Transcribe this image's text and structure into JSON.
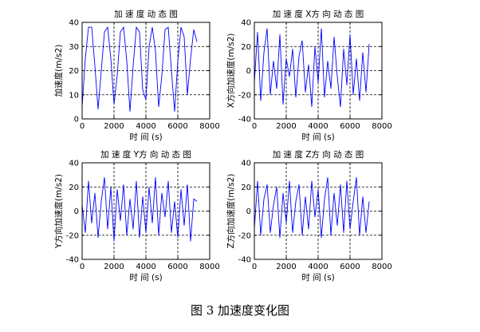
{
  "figure_caption": "图 3  加速度变化图",
  "chart_data": [
    {
      "type": "line",
      "title": "加 速 度 动 态 图",
      "xlabel": "时 间 (s)",
      "ylabel": "加速度(m/s2)",
      "xlim": [
        0,
        8000
      ],
      "ylim": [
        0,
        40
      ],
      "xticks": [
        0,
        2000,
        4000,
        6000,
        8000
      ],
      "yticks": [
        0,
        10,
        20,
        30,
        40
      ],
      "grid": true,
      "color": "#0000ff",
      "x": [
        0,
        200,
        400,
        600,
        800,
        1000,
        1200,
        1400,
        1600,
        1800,
        2000,
        2200,
        2400,
        2600,
        2800,
        3000,
        3200,
        3400,
        3600,
        3800,
        4000,
        4200,
        4400,
        4600,
        4800,
        5000,
        5200,
        5400,
        5600,
        5800,
        6000,
        6200,
        6400,
        6600,
        6800,
        7000,
        7200
      ],
      "values": [
        5,
        25,
        38,
        38,
        22,
        4,
        20,
        36,
        38,
        25,
        6,
        18,
        36,
        38,
        24,
        3,
        22,
        38,
        36,
        12,
        8,
        30,
        38,
        28,
        5,
        18,
        37,
        38,
        20,
        3,
        24,
        38,
        34,
        10,
        25,
        37,
        32
      ]
    },
    {
      "type": "line",
      "title": "加 速 度 X方 向 动 态 图",
      "xlabel": "时 间 (s)",
      "ylabel": "X方向加速度(m/s2)",
      "xlim": [
        0,
        8000
      ],
      "ylim": [
        -40,
        40
      ],
      "xticks": [
        0,
        2000,
        4000,
        6000,
        8000
      ],
      "yticks": [
        -40,
        -20,
        0,
        20,
        40
      ],
      "grid": true,
      "color": "#0000ff",
      "x": [
        0,
        200,
        400,
        600,
        800,
        1000,
        1200,
        1400,
        1600,
        1800,
        2000,
        2200,
        2400,
        2600,
        2800,
        3000,
        3200,
        3400,
        3600,
        3800,
        4000,
        4200,
        4400,
        4600,
        4800,
        5000,
        5200,
        5400,
        5600,
        5800,
        6000,
        6200,
        6400,
        6600,
        6800,
        7000,
        7200
      ],
      "values": [
        -10,
        32,
        -25,
        15,
        35,
        -20,
        8,
        -15,
        30,
        -28,
        10,
        -5,
        18,
        -22,
        12,
        25,
        -18,
        5,
        -30,
        20,
        -10,
        35,
        -22,
        8,
        -15,
        28,
        -5,
        -30,
        18,
        -12,
        30,
        -20,
        10,
        -25,
        15,
        -18,
        22
      ]
    },
    {
      "type": "line",
      "title": "加 速 度 Y方 向 动 态 图",
      "xlabel": "时 间 (s)",
      "ylabel": "Y方向加速度(m/s2)",
      "xlim": [
        0,
        8000
      ],
      "ylim": [
        -40,
        40
      ],
      "xticks": [
        0,
        2000,
        4000,
        6000,
        8000
      ],
      "yticks": [
        -40,
        -20,
        0,
        20,
        40
      ],
      "grid": true,
      "color": "#0000ff",
      "x": [
        0,
        200,
        400,
        600,
        800,
        1000,
        1200,
        1400,
        1600,
        1800,
        2000,
        2200,
        2400,
        2600,
        2800,
        3000,
        3200,
        3400,
        3600,
        3800,
        4000,
        4200,
        4400,
        4600,
        4800,
        5000,
        5200,
        5400,
        5600,
        5800,
        6000,
        6200,
        6400,
        6600,
        6800,
        7000,
        7200
      ],
      "values": [
        5,
        -18,
        25,
        -10,
        15,
        -22,
        8,
        28,
        -15,
        20,
        -25,
        18,
        -8,
        22,
        -20,
        10,
        -15,
        25,
        -22,
        12,
        -18,
        20,
        -10,
        28,
        -20,
        15,
        -5,
        25,
        -18,
        8,
        -22,
        18,
        -12,
        22,
        -25,
        10,
        8
      ]
    },
    {
      "type": "line",
      "title": "加 速 度 Z方 向 动 态 图",
      "xlabel": "时 间 (s)",
      "ylabel": "Z方向加速度(m/s2)",
      "xlim": [
        0,
        8000
      ],
      "ylim": [
        -40,
        40
      ],
      "xticks": [
        0,
        2000,
        4000,
        6000,
        8000
      ],
      "yticks": [
        -40,
        -20,
        0,
        20,
        40
      ],
      "grid": true,
      "color": "#0000ff",
      "x": [
        0,
        200,
        400,
        600,
        800,
        1000,
        1200,
        1400,
        1600,
        1800,
        2000,
        2200,
        2400,
        2600,
        2800,
        3000,
        3200,
        3400,
        3600,
        3800,
        4000,
        4200,
        4400,
        4600,
        4800,
        5000,
        5200,
        5400,
        5600,
        5800,
        6000,
        6200,
        6400,
        6600,
        6800,
        7000,
        7200
      ],
      "values": [
        -15,
        25,
        -20,
        10,
        22,
        -18,
        5,
        20,
        -22,
        15,
        -10,
        25,
        -18,
        8,
        22,
        -20,
        12,
        -15,
        25,
        -5,
        18,
        -22,
        10,
        28,
        -20,
        15,
        -12,
        22,
        -18,
        25,
        -15,
        8,
        28,
        -20,
        12,
        -18,
        8
      ]
    }
  ]
}
